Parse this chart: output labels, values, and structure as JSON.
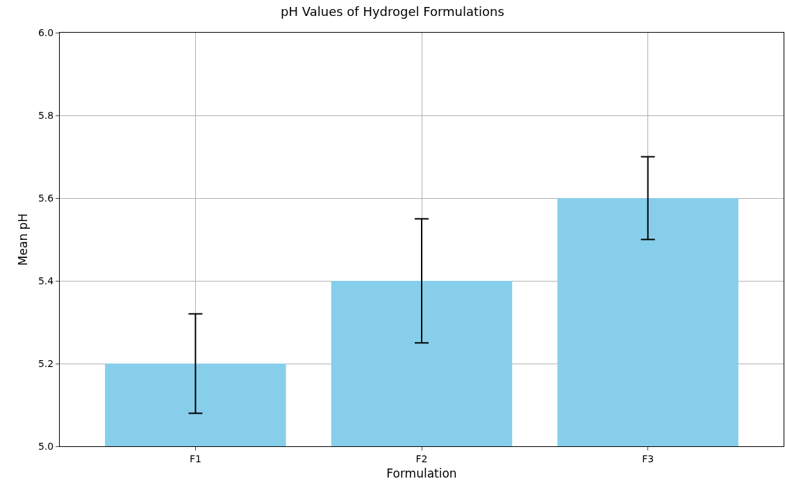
{
  "chart_data": {
    "type": "bar",
    "title": "pH Values of Hydrogel Formulations",
    "xlabel": "Formulation",
    "ylabel": "Mean pH",
    "categories": [
      "F1",
      "F2",
      "F3"
    ],
    "values": [
      5.2,
      5.4,
      5.6
    ],
    "errors": [
      0.12,
      0.15,
      0.1
    ],
    "color": "#87ceeb",
    "ylim": [
      5.0,
      6.0
    ],
    "yticks": [
      {
        "value": 5.0,
        "label": "5.0"
      },
      {
        "value": 5.2,
        "label": "5.2"
      },
      {
        "value": 5.4,
        "label": "5.4"
      },
      {
        "value": 5.6,
        "label": "5.6"
      },
      {
        "value": 5.8,
        "label": "5.8"
      },
      {
        "value": 6.0,
        "label": "6.0"
      }
    ],
    "grid": true
  }
}
